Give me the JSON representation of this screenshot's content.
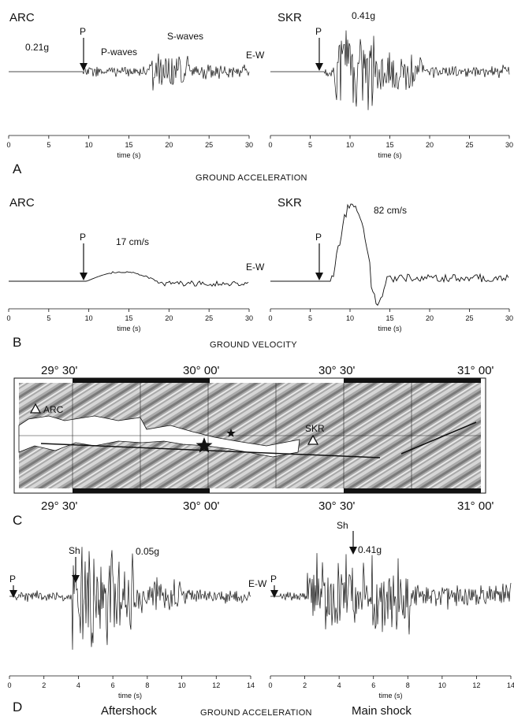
{
  "panels": {
    "A": {
      "letter": "A",
      "caption": "GROUND ACCELERATION",
      "left": {
        "station": "ARC",
        "peak": "0.21g",
        "p_label": "P",
        "pwave_label": "P-waves",
        "swave_label": "S-waves",
        "component": "E-W"
      },
      "right": {
        "station": "SKR",
        "peak": "0.41g",
        "p_label": "P"
      }
    },
    "B": {
      "letter": "B",
      "caption": "GROUND VELOCITY",
      "left": {
        "station": "ARC",
        "peak": "17 cm/s",
        "p_label": "P",
        "component": "E-W"
      },
      "right": {
        "station": "SKR",
        "peak": "82 cm/s",
        "p_label": "P"
      }
    },
    "C": {
      "letter": "C",
      "top_labels": [
        "29° 30'",
        "30° 00'",
        "30° 30'",
        "31° 00'"
      ],
      "bottom_labels": [
        "29° 30'",
        "30° 00'",
        "30° 30'",
        "31° 00'"
      ],
      "stations": [
        "ARC",
        "SKR"
      ],
      "colors": {
        "land": "#a9a9a9",
        "water": "#ffffff"
      }
    },
    "D": {
      "letter": "D",
      "caption": "GROUND ACCELERATION",
      "left": {
        "peak": "0.05g",
        "p_label": "P",
        "sh_label": "Sh",
        "title": "Aftershock"
      },
      "right": {
        "peak": "0.41g",
        "p_label": "P",
        "sh_label": "Sh",
        "component": "E-W",
        "title": "Main shock"
      }
    }
  },
  "axes": {
    "ab": {
      "xlabel": "time (s)",
      "ticks": [
        "0",
        "5",
        "10",
        "15",
        "20",
        "25",
        "30"
      ],
      "range": [
        0,
        30
      ]
    },
    "d": {
      "xlabel": "time (s)",
      "ticks": [
        "0",
        "2",
        "4",
        "6",
        "8",
        "10",
        "12",
        "14"
      ],
      "range": [
        0,
        14
      ]
    }
  }
}
